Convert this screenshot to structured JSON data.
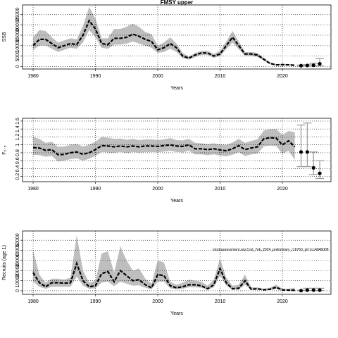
{
  "chart_data": [
    {
      "type": "line",
      "title": "FMSY upper",
      "xlabel": "Years",
      "ylabel": "SSB",
      "xlim": [
        1978.3,
        2027.8
      ],
      "xticks": [
        1980,
        1990,
        2000,
        2010,
        2020
      ],
      "ylim": [
        -1200,
        29500
      ],
      "yticks": [
        0,
        5000,
        10000,
        15000,
        20000,
        25000
      ],
      "grid": true,
      "line_color": "#000000",
      "band_color": "#bebebe",
      "bar_color": "#999999",
      "x": [
        1980,
        1981,
        1982,
        1983,
        1984,
        1985,
        1986,
        1987,
        1988,
        1989,
        1990,
        1991,
        1992,
        1993,
        1994,
        1995,
        1996,
        1997,
        1998,
        1999,
        2000,
        2001,
        2002,
        2003,
        2004,
        2005,
        2006,
        2007,
        2008,
        2009,
        2010,
        2011,
        2012,
        2013,
        2014,
        2015,
        2016,
        2017,
        2018,
        2019,
        2020,
        2021,
        2022
      ],
      "values": [
        10000,
        13000,
        13000,
        11000,
        9000,
        10000,
        11000,
        10500,
        15000,
        22000,
        18000,
        11000,
        10500,
        13500,
        13500,
        14000,
        15500,
        14500,
        13000,
        12000,
        8000,
        9000,
        11000,
        9000,
        5000,
        4000,
        5500,
        6500,
        6500,
        5000,
        6000,
        10000,
        14000,
        10000,
        6000,
        6000,
        5500,
        3500,
        1500,
        800,
        900,
        800,
        600
      ],
      "upper": [
        14000,
        17500,
        17000,
        14000,
        11500,
        12500,
        13500,
        13000,
        19500,
        28500,
        23000,
        13500,
        13500,
        18000,
        18000,
        19000,
        20500,
        19000,
        16500,
        15500,
        10000,
        11500,
        14000,
        11000,
        6500,
        4800,
        6500,
        7500,
        7500,
        6000,
        7500,
        12000,
        17000,
        12000,
        7000,
        7000,
        6500,
        4200,
        2000,
        1100,
        1200,
        1100,
        900
      ],
      "lower": [
        8000,
        10000,
        10000,
        8500,
        7000,
        8000,
        9000,
        8500,
        11500,
        17500,
        14000,
        9000,
        8500,
        10500,
        10500,
        11000,
        12000,
        11000,
        10000,
        9000,
        6500,
        7000,
        8500,
        7000,
        4000,
        3300,
        4500,
        5500,
        5500,
        4200,
        5000,
        8300,
        11500,
        8300,
        5000,
        5000,
        4600,
        2900,
        1100,
        500,
        600,
        500,
        400
      ],
      "projection": {
        "x": [
          2023,
          2024,
          2025,
          2026
        ],
        "values": [
          400,
          500,
          600,
          1300
        ],
        "lower": [
          200,
          200,
          200,
          300
        ],
        "upper": [
          700,
          900,
          1500,
          3800
        ]
      }
    },
    {
      "type": "line",
      "xlabel": "Years",
      "ylabel": "F₂₋₅",
      "xlim": [
        1978.3,
        2027.8
      ],
      "xticks": [
        1980,
        1990,
        2000,
        2010,
        2020
      ],
      "ylim": [
        0.07,
        1.67
      ],
      "yticks": [
        0.2,
        0.4,
        0.6,
        0.8,
        1,
        1.2,
        1.4,
        1.6
      ],
      "grid": true,
      "line_color": "#000000",
      "band_color": "#bebebe",
      "bar_color": "#999999",
      "x": [
        1980,
        1981,
        1982,
        1983,
        1984,
        1985,
        1986,
        1987,
        1988,
        1989,
        1990,
        1991,
        1992,
        1993,
        1994,
        1995,
        1996,
        1997,
        1998,
        1999,
        2000,
        2001,
        2002,
        2003,
        2004,
        2005,
        2006,
        2007,
        2008,
        2009,
        2010,
        2011,
        2012,
        2013,
        2014,
        2015,
        2016,
        2017,
        2018,
        2019,
        2020,
        2021,
        2022
      ],
      "values": [
        0.93,
        0.92,
        0.86,
        0.88,
        0.75,
        0.76,
        0.8,
        0.82,
        0.76,
        0.8,
        0.88,
        0.98,
        0.97,
        0.95,
        0.97,
        0.95,
        0.97,
        0.95,
        0.97,
        0.97,
        0.96,
        0.98,
        1.0,
        0.97,
        0.96,
        1.0,
        0.9,
        0.9,
        0.88,
        0.9,
        0.87,
        0.85,
        0.9,
        0.98,
        0.88,
        0.92,
        0.95,
        1.15,
        1.18,
        1.17,
        1.0,
        1.1,
        0.95
      ],
      "upper": [
        1.2,
        1.15,
        1.05,
        1.08,
        0.95,
        0.96,
        1.0,
        1.02,
        0.96,
        1.0,
        1.08,
        1.2,
        1.18,
        1.15,
        1.16,
        1.13,
        1.15,
        1.12,
        1.14,
        1.14,
        1.12,
        1.14,
        1.17,
        1.12,
        1.11,
        1.15,
        1.05,
        1.04,
        1.02,
        1.04,
        1.01,
        1.0,
        1.06,
        1.15,
        1.05,
        1.1,
        1.14,
        1.36,
        1.4,
        1.4,
        1.25,
        1.35,
        1.32
      ],
      "lower": [
        0.75,
        0.74,
        0.7,
        0.72,
        0.58,
        0.6,
        0.64,
        0.66,
        0.6,
        0.65,
        0.72,
        0.82,
        0.81,
        0.8,
        0.82,
        0.8,
        0.82,
        0.8,
        0.82,
        0.82,
        0.81,
        0.83,
        0.85,
        0.82,
        0.81,
        0.85,
        0.76,
        0.76,
        0.74,
        0.76,
        0.73,
        0.71,
        0.75,
        0.82,
        0.72,
        0.76,
        0.78,
        0.96,
        0.98,
        0.97,
        0.78,
        0.85,
        0.62
      ],
      "projection": {
        "x": [
          2023,
          2024,
          2025,
          2026
        ],
        "values": [
          0.82,
          0.82,
          0.42,
          0.28
        ],
        "lower": [
          0.45,
          0.45,
          0.25,
          0.15
        ],
        "upper": [
          1.5,
          1.55,
          0.82,
          0.6
        ]
      }
    },
    {
      "type": "line",
      "xlabel": "Years",
      "ylabel": "Recruits (age 1)",
      "annotation": "stockassessment.org Cod_7ek_2024_preliminary_r16760_git:1cc4048d08",
      "xlim": [
        1978.3,
        2027.8
      ],
      "xticks": [
        1980,
        1990,
        2000,
        2010,
        2020
      ],
      "ylim": [
        -3500,
        59150
      ],
      "yticks": [
        0,
        10000,
        20000,
        30000,
        40000,
        50000
      ],
      "grid": true,
      "line_color": "#000000",
      "band_color": "#bebebe",
      "bar_color": "#999999",
      "x": [
        1980,
        1981,
        1982,
        1983,
        1984,
        1985,
        1986,
        1987,
        1988,
        1989,
        1990,
        1991,
        1992,
        1993,
        1994,
        1995,
        1996,
        1997,
        1998,
        1999,
        2000,
        2001,
        2002,
        2003,
        2004,
        2005,
        2006,
        2007,
        2008,
        2009,
        2010,
        2011,
        2012,
        2013,
        2014,
        2015,
        2016,
        2017,
        2018,
        2019,
        2020,
        2021,
        2022
      ],
      "values": [
        18000,
        8000,
        4000,
        8000,
        8000,
        7500,
        8000,
        27000,
        10000,
        4000,
        5000,
        17000,
        19000,
        9000,
        20000,
        15000,
        10000,
        11000,
        6000,
        3000,
        16000,
        15000,
        5000,
        3000,
        4000,
        6000,
        6000,
        5000,
        2000,
        6000,
        22000,
        8000,
        2000,
        2500,
        10000,
        1500,
        2000,
        1000,
        1500,
        3500,
        800,
        700,
        500
      ],
      "upper": [
        40000,
        16000,
        8000,
        12000,
        12000,
        11000,
        13000,
        55000,
        20000,
        8000,
        10000,
        37000,
        39000,
        18000,
        44000,
        30000,
        20000,
        22000,
        12000,
        7000,
        30000,
        28000,
        9000,
        6000,
        8000,
        11000,
        10000,
        9000,
        5000,
        11000,
        32000,
        13000,
        5000,
        6000,
        16000,
        3500,
        3500,
        2000,
        3000,
        6000,
        2000,
        2000,
        3000
      ],
      "lower": [
        9000,
        4000,
        2000,
        4000,
        4000,
        4000,
        4000,
        14000,
        5000,
        2000,
        2500,
        8000,
        9000,
        4500,
        9000,
        7000,
        5000,
        5500,
        3000,
        1500,
        9000,
        9000,
        2500,
        1500,
        2000,
        3500,
        3500,
        3000,
        1000,
        3500,
        15000,
        5000,
        1000,
        1200,
        6000,
        800,
        1000,
        500,
        700,
        2000,
        300,
        200,
        100
      ],
      "projection": {
        "x": [
          2023,
          2024,
          2025,
          2026
        ],
        "values": [
          200,
          700,
          700,
          700
        ],
        "lower": [
          100,
          200,
          200,
          200
        ],
        "upper": [
          500,
          2500,
          2500,
          2500
        ]
      }
    }
  ]
}
